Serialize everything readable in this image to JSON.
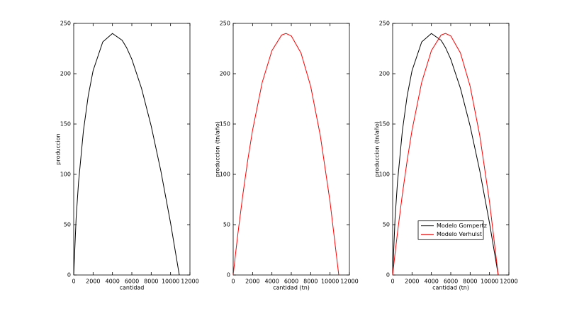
{
  "chart_data": [
    {
      "type": "line",
      "xlabel": "cantidad",
      "ylabel": "produccion",
      "x": [
        0,
        250,
        500,
        1000,
        1500,
        2000,
        3000,
        4000,
        5000,
        5450,
        6000,
        7000,
        8000,
        9000,
        10000,
        10900
      ],
      "series": [
        {
          "color": "#000000",
          "values": [
            0,
            56.5,
            92.2,
            143.0,
            178.0,
            203.0,
            231.6,
            240.0,
            233.2,
            226.1,
            214.4,
            185.5,
            148.0,
            103.2,
            51.6,
            0
          ]
        }
      ],
      "xlim": [
        0,
        12000
      ],
      "xticks": [
        0,
        2000,
        4000,
        6000,
        8000,
        10000,
        12000
      ],
      "ylim": [
        0,
        250
      ],
      "yticks": [
        0,
        50,
        100,
        150,
        200,
        250
      ]
    },
    {
      "type": "line",
      "xlabel": "cantidad (tn)",
      "ylabel": "produccion (tn/año)",
      "x": [
        0,
        250,
        500,
        1000,
        1500,
        2000,
        3000,
        4000,
        5000,
        5450,
        6000,
        7000,
        8000,
        9000,
        10000,
        10900
      ],
      "series": [
        {
          "color": "#ff0000",
          "values": [
            0,
            21.5,
            42.0,
            80.0,
            113.9,
            143.8,
            191.5,
            223.0,
            238.4,
            240.0,
            237.6,
            220.6,
            187.5,
            138.2,
            72.7,
            0
          ]
        }
      ],
      "xlim": [
        0,
        12000
      ],
      "xticks": [
        0,
        2000,
        4000,
        6000,
        8000,
        10000,
        12000
      ],
      "ylim": [
        0,
        250
      ],
      "yticks": [
        0,
        50,
        100,
        150,
        200,
        250
      ]
    },
    {
      "type": "line",
      "xlabel": "cantidad (tn)",
      "ylabel": "produccion (tn/año)",
      "x": [
        0,
        250,
        500,
        1000,
        1500,
        2000,
        3000,
        4000,
        5000,
        5450,
        6000,
        7000,
        8000,
        9000,
        10000,
        10900
      ],
      "series": [
        {
          "name": "Modelo Gompertz",
          "color": "#000000",
          "values": [
            0,
            56.5,
            92.2,
            143.0,
            178.0,
            203.0,
            231.6,
            240.0,
            233.2,
            226.1,
            214.4,
            185.5,
            148.0,
            103.2,
            51.6,
            0
          ]
        },
        {
          "name": "Modelo Verhulst",
          "color": "#ff0000",
          "values": [
            0,
            21.5,
            42.0,
            80.0,
            113.9,
            143.8,
            191.5,
            223.0,
            238.4,
            240.0,
            237.6,
            220.6,
            187.5,
            138.2,
            72.7,
            0
          ]
        }
      ],
      "xlim": [
        0,
        12000
      ],
      "xticks": [
        0,
        2000,
        4000,
        6000,
        8000,
        10000,
        12000
      ],
      "ylim": [
        0,
        250
      ],
      "yticks": [
        0,
        50,
        100,
        150,
        200,
        250
      ],
      "legend": "lower-center"
    }
  ]
}
